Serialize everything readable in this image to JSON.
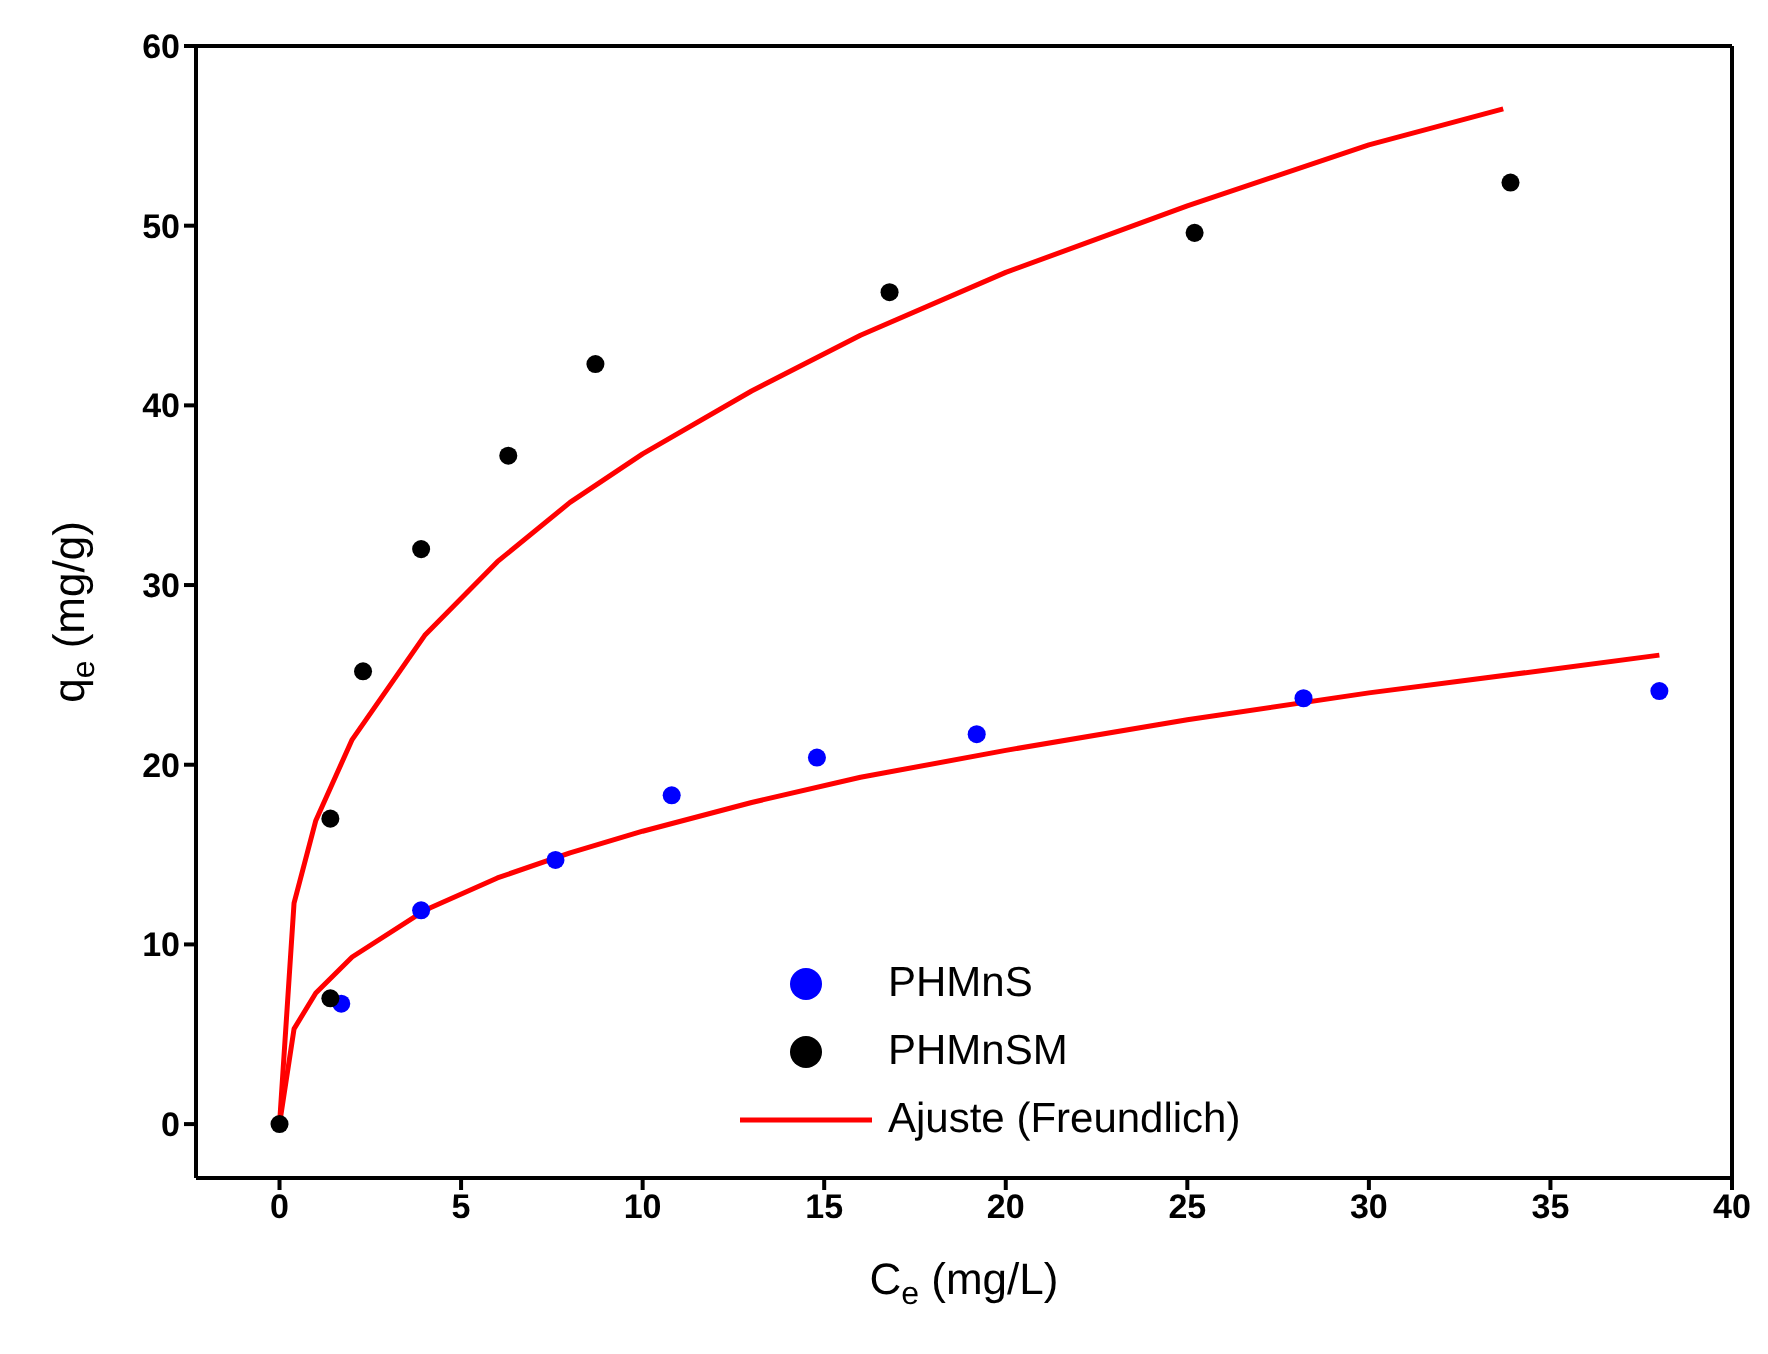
{
  "chart_data": {
    "type": "scatter",
    "xlabel": "C$_{e}$ (mg/L)",
    "ylabel": "q$_{e}$ (mg/g)",
    "xlim": [
      -2.3,
      40
    ],
    "xticks": [
      0,
      5,
      10,
      15,
      20,
      25,
      30,
      35,
      40
    ],
    "ylim": [
      -3,
      60
    ],
    "yticks": [
      0,
      10,
      20,
      30,
      40,
      50,
      60
    ],
    "grid": false,
    "legend": "bottom",
    "marker": "circle",
    "series": [
      {
        "name": "PHMnS",
        "color": "#0000ff",
        "x": [
          1.7,
          3.9,
          7.6,
          10.8,
          14.8,
          19.2,
          28.2,
          38.0
        ],
        "values": [
          6.7,
          11.9,
          14.7,
          18.3,
          20.4,
          21.7,
          23.7,
          24.1
        ]
      },
      {
        "name": "PHMnSM",
        "color": "#000000",
        "x": [
          0,
          1.4,
          1.4,
          2.3,
          3.9,
          6.3,
          8.7,
          16.8,
          25.2,
          33.9
        ],
        "values": [
          0,
          7.0,
          17.0,
          25.2,
          32.0,
          37.2,
          42.3,
          46.3,
          49.6,
          52.4
        ]
      },
      {
        "name": "Ajuste (Freundlich)",
        "type": "line",
        "color": "#ff0000",
        "marker": "none",
        "line_style": "solid",
        "x": [
          0,
          0.4,
          1,
          2,
          4,
          6,
          8,
          10,
          13,
          16,
          20,
          25,
          30,
          33.7
        ],
        "values": [
          0,
          12.3,
          16.9,
          21.4,
          27.2,
          31.3,
          34.6,
          37.3,
          40.8,
          43.9,
          47.4,
          51.1,
          54.5,
          56.5
        ]
      },
      {
        "type": "line",
        "color": "#ff0000",
        "marker": "none",
        "line_style": "solid",
        "x": [
          0,
          0.4,
          1,
          2,
          4,
          6,
          8,
          10,
          13,
          16,
          20,
          25,
          30,
          35,
          38
        ],
        "values": [
          0,
          5.3,
          7.3,
          9.3,
          11.9,
          13.7,
          15.1,
          16.3,
          17.9,
          19.3,
          20.8,
          22.5,
          24.0,
          25.3,
          26.1
        ]
      }
    ]
  }
}
